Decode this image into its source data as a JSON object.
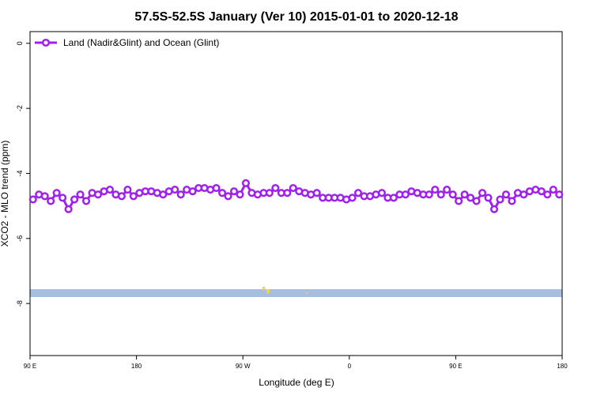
{
  "chart_data": {
    "type": "line",
    "title": "57.5S-52.5S January (Ver 10)   2015-01-01 to 2020-12-18",
    "x_label": "Longitude (deg E)",
    "y_label": "XCO2 - MLO trend (ppm)",
    "x": [
      92.5,
      97.5,
      102.5,
      107.5,
      112.5,
      117.5,
      122.5,
      127.5,
      132.5,
      137.5,
      142.5,
      147.5,
      152.5,
      157.5,
      162.5,
      167.5,
      172.5,
      177.5,
      182.5,
      187.5,
      192.5,
      197.5,
      202.5,
      207.5,
      212.5,
      217.5,
      222.5,
      227.5,
      232.5,
      237.5,
      242.5,
      247.5,
      252.5,
      257.5,
      262.5,
      267.5,
      272.5,
      277.5,
      282.5,
      287.5,
      292.5,
      297.5,
      302.5,
      307.5,
      312.5,
      317.5,
      322.5,
      327.5,
      332.5,
      337.5,
      342.5,
      347.5,
      352.5,
      357.5,
      362.5,
      367.5,
      372.5,
      377.5,
      382.5,
      387.5,
      392.5,
      397.5,
      402.5,
      407.5,
      412.5,
      417.5,
      422.5,
      427.5,
      432.5,
      437.5,
      442.5,
      447.5,
      452.5,
      457.5,
      462.5,
      467.5,
      472.5,
      477.5,
      482.5,
      487.5,
      492.5,
      497.5,
      502.5,
      507.5,
      512.5,
      517.5,
      522.5,
      527.5,
      532.5,
      537.5
    ],
    "series": [
      {
        "name": "Land (Nadir&Glint) and Ocean (Glint)",
        "color": "#a020f0",
        "values": [
          -4.8,
          -4.65,
          -4.7,
          -4.85,
          -4.6,
          -4.75,
          -5.1,
          -4.8,
          -4.65,
          -4.85,
          -4.6,
          -4.65,
          -4.55,
          -4.5,
          -4.65,
          -4.7,
          -4.5,
          -4.7,
          -4.6,
          -4.55,
          -4.55,
          -4.6,
          -4.65,
          -4.55,
          -4.5,
          -4.65,
          -4.5,
          -4.55,
          -4.45,
          -4.45,
          -4.5,
          -4.45,
          -4.6,
          -4.7,
          -4.55,
          -4.65,
          -4.3,
          -4.6,
          -4.65,
          -4.6,
          -4.6,
          -4.45,
          -4.6,
          -4.6,
          -4.45,
          -4.55,
          -4.6,
          -4.65,
          -4.6,
          -4.75,
          -4.75,
          -4.75,
          -4.75,
          -4.8,
          -4.75,
          -4.6,
          -4.7,
          -4.7,
          -4.65,
          -4.6,
          -4.75,
          -4.75,
          -4.65,
          -4.65,
          -4.55,
          -4.6,
          -4.65,
          -4.65,
          -4.5,
          -4.65,
          -4.5,
          -4.65,
          -4.85,
          -4.65,
          -4.75,
          -4.85,
          -4.6,
          -4.75,
          -5.1,
          -4.8,
          -4.65,
          -4.85,
          -4.6,
          -4.65,
          -4.55,
          -4.5,
          -4.55,
          -4.65,
          -4.5,
          -4.65
        ]
      }
    ],
    "xlim": [
      90,
      540
    ],
    "xticks": [
      {
        "value": 90,
        "label": "90 E"
      },
      180,
      {
        "value": 270,
        "label": "90 W"
      },
      {
        "value": 360,
        "label": "0"
      },
      {
        "value": 450,
        "label": "90 E"
      },
      {
        "value": 540,
        "label": "180"
      }
    ],
    "ylim": [
      -9.6,
      0.36
    ],
    "yticks": [
      0,
      -2,
      -4,
      -6,
      -8
    ],
    "legend": "top-left"
  }
}
